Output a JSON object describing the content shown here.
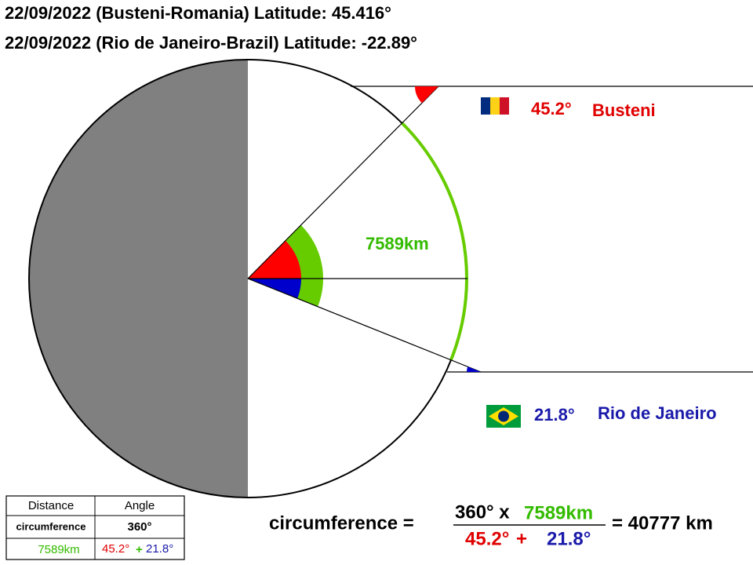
{
  "header": {
    "line1": "22/09/2022 (Busteni-Romania) Latitude: 45.416°",
    "line2": "22/09/2022  (Rio de Janeiro-Brazil) Latitude: -22.89°"
  },
  "labels": {
    "busteni_angle": "45.2°",
    "busteni_name": "Busteni",
    "rio_angle": "21.8°",
    "rio_name": "Rio de Janeiro",
    "arc_distance": "7589km"
  },
  "table": {
    "header": [
      "Distance",
      "Angle"
    ],
    "rows": [
      [
        "circumference",
        "360°"
      ],
      [
        "7589km",
        "45.2°",
        "+",
        "21.8°"
      ]
    ]
  },
  "formula": {
    "left": "circumference =",
    "numerator": [
      "360° x",
      "7589km"
    ],
    "denominator": [
      "45.2°",
      "+",
      "21.8°"
    ],
    "result": "= 40777 km"
  }
}
